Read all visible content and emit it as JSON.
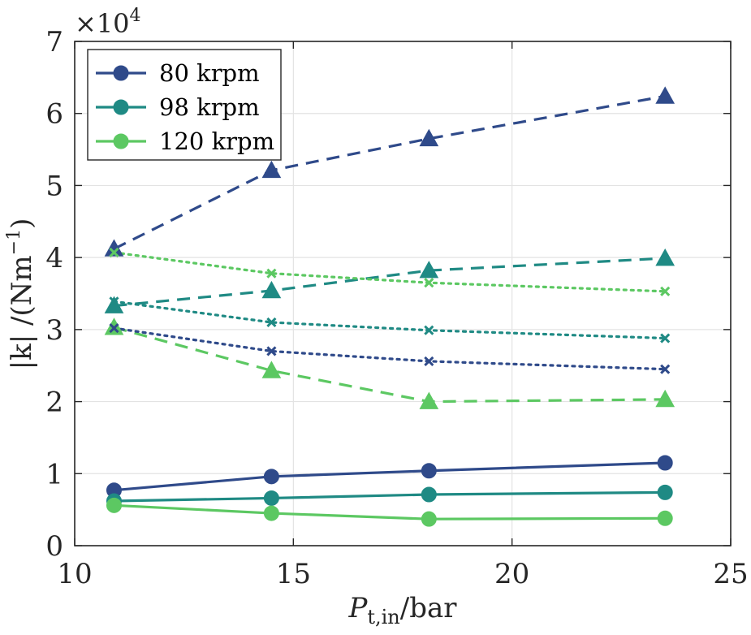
{
  "chart_data": {
    "type": "line",
    "xlabel_main": "P",
    "xlabel_sub": "t,in",
    "xlabel_rest": "/bar",
    "ylabel_main": "|k| /(Nm",
    "ylabel_sup": "−1",
    "ylabel_end": ")",
    "y_multiplier_base": "×10",
    "y_multiplier_exp": "4",
    "xlim": [
      10,
      25
    ],
    "ylim": [
      0,
      70000
    ],
    "xticks": [
      10,
      15,
      20,
      25
    ],
    "xtick_labels": [
      "10",
      "15",
      "20",
      "25"
    ],
    "yticks": [
      0,
      10000,
      20000,
      30000,
      40000,
      50000,
      60000,
      70000
    ],
    "ytick_labels": [
      "0",
      "1",
      "2",
      "3",
      "4",
      "5",
      "6",
      "7"
    ],
    "grid": true,
    "legend_position": "top-left",
    "x": [
      10.9,
      14.5,
      18.1,
      23.5
    ],
    "series": [
      {
        "name": "80 krpm",
        "color": "#2f4a8a",
        "style": "solid",
        "marker": "circle",
        "legend": true,
        "values": [
          7700,
          9600,
          10400,
          11500
        ]
      },
      {
        "name": "98 krpm",
        "color": "#1f8a84",
        "style": "solid",
        "marker": "circle",
        "legend": true,
        "values": [
          6200,
          6600,
          7100,
          7400
        ]
      },
      {
        "name": "120 krpm",
        "color": "#5cc862",
        "style": "solid",
        "marker": "circle",
        "legend": true,
        "values": [
          5600,
          4500,
          3700,
          3800
        ]
      },
      {
        "color": "#2f4a8a",
        "style": "dashed",
        "marker": "triangle",
        "legend": false,
        "values": [
          41200,
          52100,
          56500,
          62400
        ]
      },
      {
        "color": "#1f8a84",
        "style": "dashed",
        "marker": "triangle",
        "legend": false,
        "values": [
          33300,
          35400,
          38200,
          39900
        ]
      },
      {
        "color": "#5cc862",
        "style": "dashed",
        "marker": "triangle",
        "legend": false,
        "values": [
          30300,
          24300,
          20000,
          20300
        ]
      },
      {
        "color": "#2f4a8a",
        "style": "dotted",
        "marker": "x",
        "legend": false,
        "values": [
          30200,
          27000,
          25600,
          24500
        ]
      },
      {
        "color": "#1f8a84",
        "style": "dotted",
        "marker": "x",
        "legend": false,
        "values": [
          33900,
          31000,
          29900,
          28800
        ]
      },
      {
        "color": "#5cc862",
        "style": "dotted",
        "marker": "x",
        "legend": false,
        "values": [
          40700,
          37800,
          36500,
          35300
        ]
      }
    ]
  }
}
